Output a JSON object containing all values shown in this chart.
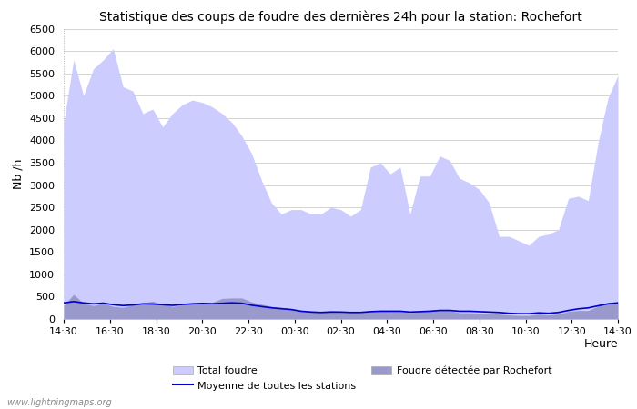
{
  "title": "Statistique des coups de foudre des dernières 24h pour la station: Rochefort",
  "xlabel": "Heure",
  "ylabel": "Nb /h",
  "ylim": [
    0,
    6500
  ],
  "yticks": [
    0,
    500,
    1000,
    1500,
    2000,
    2500,
    3000,
    3500,
    4000,
    4500,
    5000,
    5500,
    6000,
    6500
  ],
  "xtick_labels": [
    "14:30",
    "16:30",
    "18:30",
    "20:30",
    "22:30",
    "00:30",
    "02:30",
    "04:30",
    "06:30",
    "08:30",
    "10:30",
    "12:30",
    "14:30"
  ],
  "watermark": "www.lightningmaps.org",
  "color_total": "#ccccff",
  "color_rochefort": "#9999cc",
  "color_moyenne": "#0000cc",
  "color_moyenne_line": "#3333aa",
  "total_foudre": [
    4400,
    5800,
    5000,
    5600,
    5800,
    6050,
    5200,
    5100,
    4600,
    4700,
    4300,
    4600,
    4800,
    4900,
    4850,
    4750,
    4600,
    4400,
    4100,
    3700,
    3100,
    2600,
    2350,
    2450,
    2450,
    2350,
    2350,
    2500,
    2450,
    2300,
    2450,
    3400,
    3500,
    3250,
    3400,
    2350,
    3200,
    3200,
    3650,
    3550,
    3150,
    3050,
    2900,
    2600,
    1850,
    1850,
    1750,
    1650,
    1850,
    1900,
    2000,
    2700,
    2750,
    2650,
    3950,
    4950,
    5450
  ],
  "rochefort": [
    300,
    550,
    350,
    300,
    350,
    280,
    260,
    320,
    360,
    400,
    330,
    280,
    320,
    360,
    360,
    370,
    460,
    470,
    470,
    380,
    330,
    280,
    260,
    230,
    190,
    180,
    170,
    190,
    170,
    150,
    140,
    190,
    190,
    170,
    170,
    140,
    170,
    190,
    210,
    190,
    140,
    140,
    130,
    120,
    110,
    90,
    80,
    80,
    110,
    90,
    110,
    170,
    190,
    190,
    290,
    370,
    390
  ],
  "moyenne": [
    360,
    390,
    360,
    340,
    355,
    320,
    300,
    315,
    340,
    335,
    320,
    305,
    325,
    340,
    350,
    342,
    352,
    362,
    352,
    308,
    278,
    250,
    230,
    212,
    174,
    156,
    147,
    156,
    156,
    147,
    147,
    165,
    174,
    174,
    174,
    156,
    165,
    174,
    192,
    192,
    174,
    174,
    165,
    156,
    147,
    128,
    119,
    119,
    138,
    128,
    147,
    192,
    228,
    248,
    295,
    340,
    360
  ]
}
